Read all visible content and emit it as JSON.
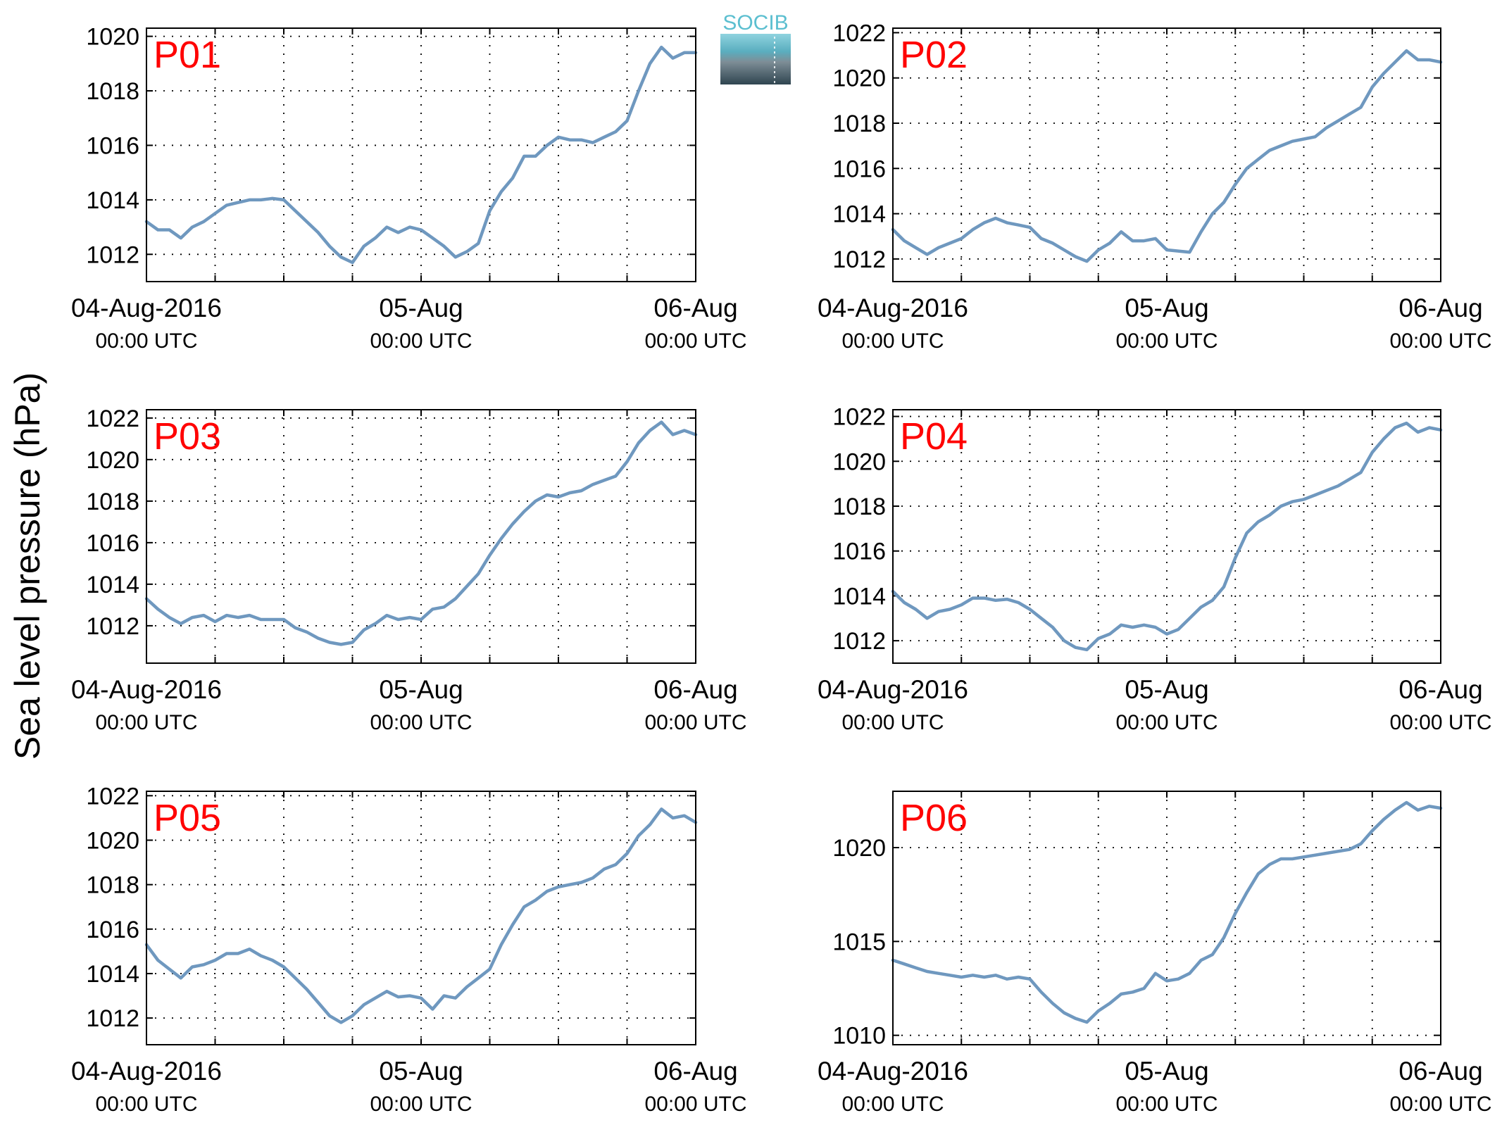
{
  "ylabel": "Sea level pressure (hPa)",
  "logo": {
    "text": "SOCIB",
    "name": "socib-logo"
  },
  "colors": {
    "line": "#6f98bf",
    "panel_label": "#ff0000",
    "axis": "#000000",
    "grid": "#000000"
  },
  "chart_data": [
    {
      "type": "line",
      "title": "P01",
      "x_range": [
        "2016-08-04 00:00",
        "2016-08-06 00:00"
      ],
      "ylim": [
        1011,
        1020.3
      ],
      "yticks": [
        1012,
        1014,
        1016,
        1018,
        1020
      ],
      "x": [
        "2016-08-04 00:00",
        "2016-08-04 01:00",
        "2016-08-04 02:00",
        "2016-08-04 03:00",
        "2016-08-04 04:00",
        "2016-08-04 05:00",
        "2016-08-04 06:00",
        "2016-08-04 07:00",
        "2016-08-04 08:00",
        "2016-08-04 09:00",
        "2016-08-04 10:00",
        "2016-08-04 11:00",
        "2016-08-04 12:00",
        "2016-08-04 13:00",
        "2016-08-04 14:00",
        "2016-08-04 15:00",
        "2016-08-04 16:00",
        "2016-08-04 17:00",
        "2016-08-04 18:00",
        "2016-08-04 19:00",
        "2016-08-04 20:00",
        "2016-08-04 21:00",
        "2016-08-04 22:00",
        "2016-08-04 23:00",
        "2016-08-05 00:00",
        "2016-08-05 01:00",
        "2016-08-05 02:00",
        "2016-08-05 03:00",
        "2016-08-05 04:00",
        "2016-08-05 05:00",
        "2016-08-05 06:00",
        "2016-08-05 07:00",
        "2016-08-05 08:00",
        "2016-08-05 09:00",
        "2016-08-05 10:00",
        "2016-08-05 11:00",
        "2016-08-05 12:00",
        "2016-08-05 13:00",
        "2016-08-05 14:00",
        "2016-08-05 15:00",
        "2016-08-05 16:00",
        "2016-08-05 17:00",
        "2016-08-05 18:00",
        "2016-08-05 19:00",
        "2016-08-05 20:00",
        "2016-08-05 21:00",
        "2016-08-05 22:00",
        "2016-08-05 23:00",
        "2016-08-06 00:00"
      ],
      "series": [
        {
          "values": [
            1013.2,
            1012.9,
            1012.9,
            1012.6,
            1013.0,
            1013.2,
            1013.5,
            1013.8,
            1013.9,
            1014.0,
            1014.0,
            1014.05,
            1014.0,
            1013.6,
            1013.2,
            1012.8,
            1012.3,
            1011.9,
            1011.7,
            1012.3,
            1012.6,
            1013.0,
            1012.8,
            1013.0,
            1012.9,
            1012.6,
            1012.3,
            1011.9,
            1012.1,
            1012.4,
            1013.6,
            1014.3,
            1014.8,
            1015.6,
            1015.6,
            1016.0,
            1016.3,
            1016.2,
            1016.2,
            1016.1,
            1016.3,
            1016.5,
            1016.9,
            1018.0,
            1019.0,
            1019.6,
            1019.2,
            1019.4,
            1019.4
          ]
        }
      ]
    },
    {
      "type": "line",
      "title": "P02",
      "x_range": [
        "2016-08-04 00:00",
        "2016-08-06 00:00"
      ],
      "ylim": [
        1011,
        1022.2
      ],
      "yticks": [
        1012,
        1014,
        1016,
        1018,
        1020,
        1022
      ],
      "x": [
        "2016-08-04 00:00",
        "2016-08-04 01:00",
        "2016-08-04 02:00",
        "2016-08-04 03:00",
        "2016-08-04 04:00",
        "2016-08-04 05:00",
        "2016-08-04 06:00",
        "2016-08-04 07:00",
        "2016-08-04 08:00",
        "2016-08-04 09:00",
        "2016-08-04 10:00",
        "2016-08-04 11:00",
        "2016-08-04 12:00",
        "2016-08-04 13:00",
        "2016-08-04 14:00",
        "2016-08-04 15:00",
        "2016-08-04 16:00",
        "2016-08-04 17:00",
        "2016-08-04 18:00",
        "2016-08-04 19:00",
        "2016-08-04 20:00",
        "2016-08-04 21:00",
        "2016-08-04 22:00",
        "2016-08-04 23:00",
        "2016-08-05 00:00",
        "2016-08-05 01:00",
        "2016-08-05 02:00",
        "2016-08-05 03:00",
        "2016-08-05 04:00",
        "2016-08-05 05:00",
        "2016-08-05 06:00",
        "2016-08-05 07:00",
        "2016-08-05 08:00",
        "2016-08-05 09:00",
        "2016-08-05 10:00",
        "2016-08-05 11:00",
        "2016-08-05 12:00",
        "2016-08-05 13:00",
        "2016-08-05 14:00",
        "2016-08-05 15:00",
        "2016-08-05 16:00",
        "2016-08-05 17:00",
        "2016-08-05 18:00",
        "2016-08-05 19:00",
        "2016-08-05 20:00",
        "2016-08-05 21:00",
        "2016-08-05 22:00",
        "2016-08-05 23:00",
        "2016-08-06 00:00"
      ],
      "series": [
        {
          "values": [
            1013.3,
            1012.8,
            1012.5,
            1012.2,
            1012.5,
            1012.7,
            1012.9,
            1013.3,
            1013.6,
            1013.8,
            1013.6,
            1013.5,
            1013.4,
            1012.9,
            1012.7,
            1012.4,
            1012.1,
            1011.9,
            1012.4,
            1012.7,
            1013.2,
            1012.8,
            1012.8,
            1012.9,
            1012.4,
            1012.35,
            1012.3,
            1013.2,
            1014.0,
            1014.5,
            1015.3,
            1016.0,
            1016.4,
            1016.8,
            1017.0,
            1017.2,
            1017.3,
            1017.4,
            1017.8,
            1018.1,
            1018.4,
            1018.7,
            1019.6,
            1020.2,
            1020.7,
            1021.2,
            1020.8,
            1020.8,
            1020.7
          ]
        }
      ]
    },
    {
      "type": "line",
      "title": "P03",
      "x_range": [
        "2016-08-04 00:00",
        "2016-08-06 00:00"
      ],
      "ylim": [
        1010.2,
        1022.4
      ],
      "yticks": [
        1012,
        1014,
        1016,
        1018,
        1020,
        1022
      ],
      "x": [
        "2016-08-04 00:00",
        "2016-08-04 01:00",
        "2016-08-04 02:00",
        "2016-08-04 03:00",
        "2016-08-04 04:00",
        "2016-08-04 05:00",
        "2016-08-04 06:00",
        "2016-08-04 07:00",
        "2016-08-04 08:00",
        "2016-08-04 09:00",
        "2016-08-04 10:00",
        "2016-08-04 11:00",
        "2016-08-04 12:00",
        "2016-08-04 13:00",
        "2016-08-04 14:00",
        "2016-08-04 15:00",
        "2016-08-04 16:00",
        "2016-08-04 17:00",
        "2016-08-04 18:00",
        "2016-08-04 19:00",
        "2016-08-04 20:00",
        "2016-08-04 21:00",
        "2016-08-04 22:00",
        "2016-08-04 23:00",
        "2016-08-05 00:00",
        "2016-08-05 01:00",
        "2016-08-05 02:00",
        "2016-08-05 03:00",
        "2016-08-05 04:00",
        "2016-08-05 05:00",
        "2016-08-05 06:00",
        "2016-08-05 07:00",
        "2016-08-05 08:00",
        "2016-08-05 09:00",
        "2016-08-05 10:00",
        "2016-08-05 11:00",
        "2016-08-05 12:00",
        "2016-08-05 13:00",
        "2016-08-05 14:00",
        "2016-08-05 15:00",
        "2016-08-05 16:00",
        "2016-08-05 17:00",
        "2016-08-05 18:00",
        "2016-08-05 19:00",
        "2016-08-05 20:00",
        "2016-08-05 21:00",
        "2016-08-05 22:00",
        "2016-08-05 23:00",
        "2016-08-06 00:00"
      ],
      "series": [
        {
          "values": [
            1013.3,
            1012.8,
            1012.4,
            1012.1,
            1012.4,
            1012.5,
            1012.2,
            1012.5,
            1012.4,
            1012.5,
            1012.3,
            1012.3,
            1012.3,
            1011.9,
            1011.7,
            1011.4,
            1011.2,
            1011.1,
            1011.2,
            1011.8,
            1012.1,
            1012.5,
            1012.3,
            1012.4,
            1012.3,
            1012.8,
            1012.9,
            1013.3,
            1013.9,
            1014.5,
            1015.4,
            1016.2,
            1016.9,
            1017.5,
            1018.0,
            1018.3,
            1018.2,
            1018.4,
            1018.5,
            1018.8,
            1019.0,
            1019.2,
            1019.9,
            1020.8,
            1021.4,
            1021.8,
            1021.2,
            1021.4,
            1021.2
          ]
        }
      ]
    },
    {
      "type": "line",
      "title": "P04",
      "x_range": [
        "2016-08-04 00:00",
        "2016-08-06 00:00"
      ],
      "ylim": [
        1011,
        1022.3
      ],
      "yticks": [
        1012,
        1014,
        1016,
        1018,
        1020,
        1022
      ],
      "x": [
        "2016-08-04 00:00",
        "2016-08-04 01:00",
        "2016-08-04 02:00",
        "2016-08-04 03:00",
        "2016-08-04 04:00",
        "2016-08-04 05:00",
        "2016-08-04 06:00",
        "2016-08-04 07:00",
        "2016-08-04 08:00",
        "2016-08-04 09:00",
        "2016-08-04 10:00",
        "2016-08-04 11:00",
        "2016-08-04 12:00",
        "2016-08-04 13:00",
        "2016-08-04 14:00",
        "2016-08-04 15:00",
        "2016-08-04 16:00",
        "2016-08-04 17:00",
        "2016-08-04 18:00",
        "2016-08-04 19:00",
        "2016-08-04 20:00",
        "2016-08-04 21:00",
        "2016-08-04 22:00",
        "2016-08-04 23:00",
        "2016-08-05 00:00",
        "2016-08-05 01:00",
        "2016-08-05 02:00",
        "2016-08-05 03:00",
        "2016-08-05 04:00",
        "2016-08-05 05:00",
        "2016-08-05 06:00",
        "2016-08-05 07:00",
        "2016-08-05 08:00",
        "2016-08-05 09:00",
        "2016-08-05 10:00",
        "2016-08-05 11:00",
        "2016-08-05 12:00",
        "2016-08-05 13:00",
        "2016-08-05 14:00",
        "2016-08-05 15:00",
        "2016-08-05 16:00",
        "2016-08-05 17:00",
        "2016-08-05 18:00",
        "2016-08-05 19:00",
        "2016-08-05 20:00",
        "2016-08-05 21:00",
        "2016-08-05 22:00",
        "2016-08-05 23:00",
        "2016-08-06 00:00"
      ],
      "series": [
        {
          "values": [
            1014.2,
            1013.7,
            1013.4,
            1013.0,
            1013.3,
            1013.4,
            1013.6,
            1013.9,
            1013.9,
            1013.8,
            1013.85,
            1013.7,
            1013.4,
            1013.0,
            1012.6,
            1012.0,
            1011.7,
            1011.6,
            1012.1,
            1012.3,
            1012.7,
            1012.6,
            1012.7,
            1012.6,
            1012.3,
            1012.5,
            1013.0,
            1013.5,
            1013.8,
            1014.4,
            1015.7,
            1016.8,
            1017.3,
            1017.6,
            1018.0,
            1018.2,
            1018.3,
            1018.5,
            1018.7,
            1018.9,
            1019.2,
            1019.5,
            1020.4,
            1021.0,
            1021.5,
            1021.7,
            1021.3,
            1021.5,
            1021.4
          ]
        }
      ]
    },
    {
      "type": "line",
      "title": "P05",
      "x_range": [
        "2016-08-04 00:00",
        "2016-08-06 00:00"
      ],
      "ylim": [
        1010.8,
        1022.2
      ],
      "yticks": [
        1012,
        1014,
        1016,
        1018,
        1020,
        1022
      ],
      "x": [
        "2016-08-04 00:00",
        "2016-08-04 01:00",
        "2016-08-04 02:00",
        "2016-08-04 03:00",
        "2016-08-04 04:00",
        "2016-08-04 05:00",
        "2016-08-04 06:00",
        "2016-08-04 07:00",
        "2016-08-04 08:00",
        "2016-08-04 09:00",
        "2016-08-04 10:00",
        "2016-08-04 11:00",
        "2016-08-04 12:00",
        "2016-08-04 13:00",
        "2016-08-04 14:00",
        "2016-08-04 15:00",
        "2016-08-04 16:00",
        "2016-08-04 17:00",
        "2016-08-04 18:00",
        "2016-08-04 19:00",
        "2016-08-04 20:00",
        "2016-08-04 21:00",
        "2016-08-04 22:00",
        "2016-08-04 23:00",
        "2016-08-05 00:00",
        "2016-08-05 01:00",
        "2016-08-05 02:00",
        "2016-08-05 03:00",
        "2016-08-05 04:00",
        "2016-08-05 05:00",
        "2016-08-05 06:00",
        "2016-08-05 07:00",
        "2016-08-05 08:00",
        "2016-08-05 09:00",
        "2016-08-05 10:00",
        "2016-08-05 11:00",
        "2016-08-05 12:00",
        "2016-08-05 13:00",
        "2016-08-05 14:00",
        "2016-08-05 15:00",
        "2016-08-05 16:00",
        "2016-08-05 17:00",
        "2016-08-05 18:00",
        "2016-08-05 19:00",
        "2016-08-05 20:00",
        "2016-08-05 21:00",
        "2016-08-05 22:00",
        "2016-08-05 23:00",
        "2016-08-06 00:00"
      ],
      "series": [
        {
          "values": [
            1015.3,
            1014.6,
            1014.2,
            1013.8,
            1014.3,
            1014.4,
            1014.6,
            1014.9,
            1014.9,
            1015.1,
            1014.8,
            1014.6,
            1014.3,
            1013.8,
            1013.3,
            1012.7,
            1012.1,
            1011.8,
            1012.1,
            1012.6,
            1012.9,
            1013.2,
            1012.95,
            1013.0,
            1012.9,
            1012.4,
            1013.0,
            1012.9,
            1013.4,
            1013.8,
            1014.2,
            1015.3,
            1016.2,
            1017.0,
            1017.3,
            1017.7,
            1017.9,
            1018.0,
            1018.1,
            1018.3,
            1018.7,
            1018.9,
            1019.4,
            1020.2,
            1020.7,
            1021.4,
            1021.0,
            1021.1,
            1020.8
          ]
        }
      ]
    },
    {
      "type": "line",
      "title": "P06",
      "x_range": [
        "2016-08-04 00:00",
        "2016-08-06 00:00"
      ],
      "ylim": [
        1009.5,
        1023
      ],
      "yticks": [
        1010,
        1015,
        1020
      ],
      "x": [
        "2016-08-04 00:00",
        "2016-08-04 01:00",
        "2016-08-04 02:00",
        "2016-08-04 03:00",
        "2016-08-04 04:00",
        "2016-08-04 05:00",
        "2016-08-04 06:00",
        "2016-08-04 07:00",
        "2016-08-04 08:00",
        "2016-08-04 09:00",
        "2016-08-04 10:00",
        "2016-08-04 11:00",
        "2016-08-04 12:00",
        "2016-08-04 13:00",
        "2016-08-04 14:00",
        "2016-08-04 15:00",
        "2016-08-04 16:00",
        "2016-08-04 17:00",
        "2016-08-04 18:00",
        "2016-08-04 19:00",
        "2016-08-04 20:00",
        "2016-08-04 21:00",
        "2016-08-04 22:00",
        "2016-08-04 23:00",
        "2016-08-05 00:00",
        "2016-08-05 01:00",
        "2016-08-05 02:00",
        "2016-08-05 03:00",
        "2016-08-05 04:00",
        "2016-08-05 05:00",
        "2016-08-05 06:00",
        "2016-08-05 07:00",
        "2016-08-05 08:00",
        "2016-08-05 09:00",
        "2016-08-05 10:00",
        "2016-08-05 11:00",
        "2016-08-05 12:00",
        "2016-08-05 13:00",
        "2016-08-05 14:00",
        "2016-08-05 15:00",
        "2016-08-05 16:00",
        "2016-08-05 17:00",
        "2016-08-05 18:00",
        "2016-08-05 19:00",
        "2016-08-05 20:00",
        "2016-08-05 21:00",
        "2016-08-05 22:00",
        "2016-08-05 23:00",
        "2016-08-06 00:00"
      ],
      "series": [
        {
          "values": [
            1014.0,
            1013.8,
            1013.6,
            1013.4,
            1013.3,
            1013.2,
            1013.1,
            1013.2,
            1013.1,
            1013.2,
            1013.0,
            1013.1,
            1013.0,
            1012.3,
            1011.7,
            1011.2,
            1010.9,
            1010.7,
            1011.3,
            1011.7,
            1012.2,
            1012.3,
            1012.5,
            1013.3,
            1012.9,
            1013.0,
            1013.3,
            1014.0,
            1014.3,
            1015.2,
            1016.5,
            1017.6,
            1018.6,
            1019.1,
            1019.4,
            1019.4,
            1019.5,
            1019.6,
            1019.7,
            1019.8,
            1019.9,
            1020.2,
            1020.9,
            1021.5,
            1022.0,
            1022.4,
            1022.0,
            1022.2,
            1022.1
          ]
        }
      ]
    }
  ],
  "xticks": [
    {
      "date": "2016-08-04 00:00",
      "line1": "04-Aug-2016",
      "line2": "00:00 UTC"
    },
    {
      "date": "2016-08-05 00:00",
      "line1": "05-Aug",
      "line2": "00:00 UTC"
    },
    {
      "date": "2016-08-06 00:00",
      "line1": "06-Aug",
      "line2": "00:00 UTC"
    }
  ]
}
